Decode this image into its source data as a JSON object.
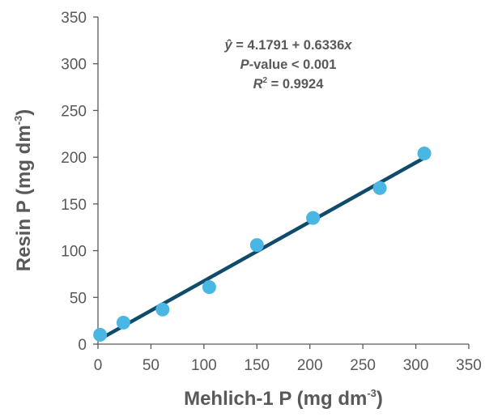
{
  "chart_data": {
    "type": "scatter",
    "xlabel": "Mehlich-1 P (mg dm-3)",
    "ylabel": "Resin P (mg dm-3)",
    "axis_label_parts": {
      "x_main": "Mehlich-1 P (mg dm",
      "y_main": "Resin P (mg dm",
      "unit_exponent": "-3",
      "close": ")"
    },
    "xlim": [
      0,
      350
    ],
    "ylim": [
      0,
      350
    ],
    "xticks": [
      0,
      50,
      100,
      150,
      200,
      250,
      300,
      350
    ],
    "yticks": [
      0,
      50,
      100,
      150,
      200,
      250,
      300,
      350
    ],
    "grid": false,
    "points": [
      {
        "x": 2,
        "y": 10
      },
      {
        "x": 24,
        "y": 23
      },
      {
        "x": 61,
        "y": 37
      },
      {
        "x": 105,
        "y": 61
      },
      {
        "x": 150,
        "y": 106
      },
      {
        "x": 203,
        "y": 135
      },
      {
        "x": 266,
        "y": 167
      },
      {
        "x": 308,
        "y": 204
      }
    ],
    "regression": {
      "intercept": 4.1791,
      "slope": 0.6336,
      "x_range": [
        2,
        308
      ]
    },
    "annotation": {
      "equation_lhs": "ŷ",
      "equation_rhs": " = 4.1791 + 0.6336",
      "equation_var": "x",
      "pvalue_p": "P",
      "pvalue_rest": "-value < 0.001",
      "r2_r": "R",
      "r2_sup": "2",
      "r2_rest": " = 0.9924"
    },
    "colors": {
      "point": "#4ab6e3",
      "line": "#0f4c6b",
      "axis": "#595959",
      "text": "#595959"
    }
  }
}
